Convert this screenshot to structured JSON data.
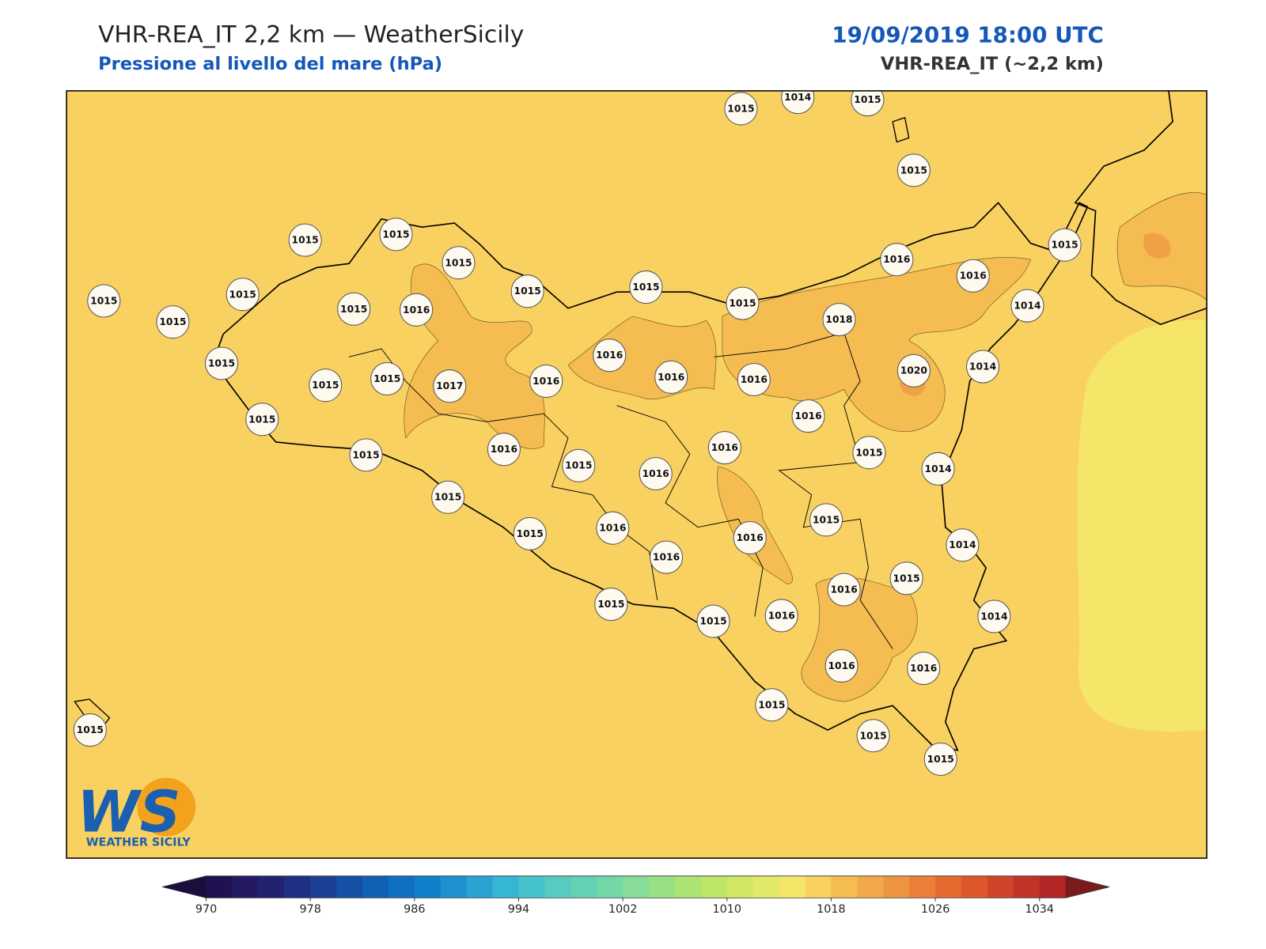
{
  "header": {
    "title": "VHR-REA_IT 2,2 km — WeatherSicily",
    "subtitle": "Pressione al livello del mare (hPa)",
    "datetime": "19/09/2019 18:00 UTC",
    "model": "VHR-REA_IT (~2,2 km)"
  },
  "stations": {
    "values": [
      1015,
      1014,
      1015,
      1015,
      1015,
      1015,
      1015,
      1015,
      1015,
      1015,
      1015,
      1016,
      1015,
      1015,
      1015,
      1016,
      1016,
      1015,
      1014,
      1018,
      1016,
      1016,
      1016,
      1020,
      1014,
      1015,
      1015,
      1015,
      1017,
      1016,
      1015,
      1016,
      1015,
      1016,
      1016,
      1015,
      1014,
      1015,
      1016,
      1015,
      1015,
      1015,
      1016,
      1016,
      1014,
      1016,
      1016,
      1015,
      1015,
      1015,
      1016,
      1014,
      1016,
      1016,
      1015,
      1015,
      1015,
      1015
    ]
  },
  "colorbar": {
    "vlim": [
      970,
      1036
    ],
    "ticks": [
      970,
      978,
      986,
      994,
      1002,
      1010,
      1018,
      1026,
      1034
    ],
    "colors": [
      "#221150",
      "#231a63",
      "#232271",
      "#1f2f82",
      "#1b3f93",
      "#1650a6",
      "#1260b5",
      "#0f70c4",
      "#107fcc",
      "#1f90d0",
      "#2aa3d3",
      "#35b6d4",
      "#46c2cb",
      "#56cbc0",
      "#62d1b5",
      "#73d7a8",
      "#87dc98",
      "#99e084",
      "#abe374",
      "#bde566",
      "#d0e866",
      "#e1e96a",
      "#f5e66a",
      "#f9d160",
      "#f4bc51",
      "#f1a94a",
      "#ee9540",
      "#ea7f38",
      "#e56a30",
      "#de562b",
      "#d04429",
      "#c23327",
      "#b42525"
    ],
    "under": "#1c0d3f",
    "over": "#7a1b1b"
  },
  "logo": {
    "text": "WS",
    "caption": "WEATHER SICILY"
  }
}
